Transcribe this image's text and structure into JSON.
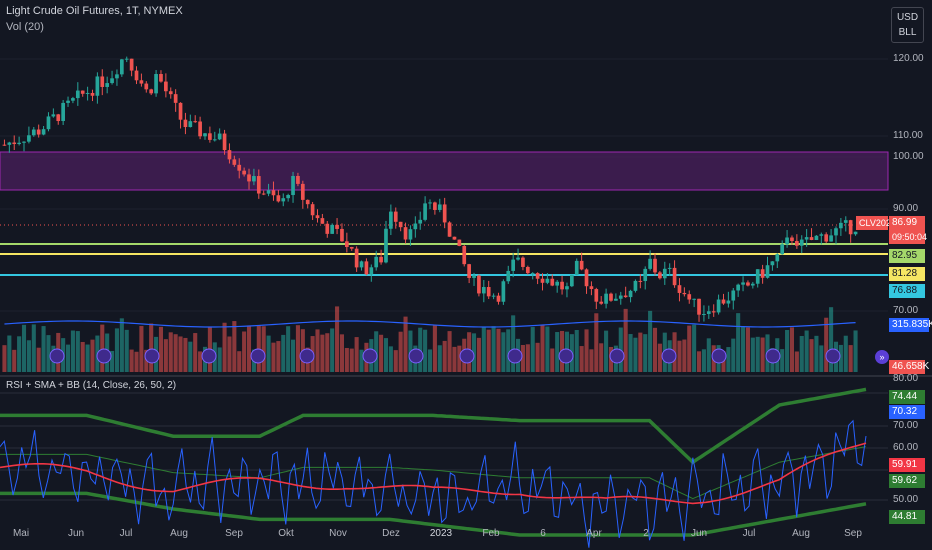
{
  "header": {
    "title": "Light Crude Oil Futures, 1T, NYMEX",
    "volume_indicator": "Vol (20)",
    "rsi_indicator": "RSI + SMA + BB (14, Close, 26, 50, 2)"
  },
  "currency_button": {
    "line1": "USD",
    "line2": "BLL"
  },
  "price_axis": {
    "ticks": [
      "120.00",
      "110.00",
      "100.00",
      "90.00",
      "70.00"
    ],
    "labels": {
      "symbol": "CLV2023",
      "last_price": "86.99",
      "countdown": "09:50:04",
      "level_green": "82.95",
      "level_yellow": "81.28",
      "level_cyan": "76.88",
      "volume_ma": "315.835K",
      "volume": "46.658K"
    }
  },
  "rsi_axis": {
    "ticks": [
      "80.00",
      "70.00",
      "60.00",
      "50.00"
    ],
    "labels": {
      "bb_upper": "74.44",
      "rsi": "70.32",
      "sma": "59.91",
      "bb_lower": "59.62",
      "last": "44.81"
    }
  },
  "time_axis": [
    "Mai",
    "Jun",
    "Jul",
    "Aug",
    "Sep",
    "Okt",
    "Nov",
    "Dez",
    "2023",
    "Feb",
    "6",
    "Apr",
    "2",
    "Jun",
    "Jul",
    "Aug",
    "Sep"
  ],
  "colors": {
    "background": "#131722",
    "up": "#26a69a",
    "down": "#ef5350",
    "zone": "#5b2a6e",
    "zone_border": "#9c27b0",
    "level_green": "#a5d86a",
    "level_yellow": "#f5e663",
    "level_cyan": "#34c7e0",
    "rsi_line": "#2962ff",
    "sma_line": "#f23645",
    "bb_band": "#2e7d32"
  },
  "chart_data": {
    "type": "candlestick",
    "instrument": "CLV2023",
    "price_range": [
      65,
      125
    ],
    "zone": [
      93.5,
      100.5
    ],
    "levels": [
      82.95,
      81.28,
      76.88
    ],
    "last_price": 86.99,
    "price_path": [
      [
        0,
        103
      ],
      [
        4,
        106
      ],
      [
        8,
        112
      ],
      [
        12,
        117
      ],
      [
        13.5,
        121
      ],
      [
        16,
        113
      ],
      [
        17,
        117
      ],
      [
        20,
        107
      ],
      [
        24,
        104
      ],
      [
        28,
        95
      ],
      [
        31,
        91
      ],
      [
        32,
        96
      ],
      [
        35,
        88
      ],
      [
        38,
        84
      ],
      [
        40,
        78
      ],
      [
        42,
        80
      ],
      [
        43,
        91
      ],
      [
        45,
        85
      ],
      [
        46,
        86
      ],
      [
        47,
        92
      ],
      [
        49,
        89
      ],
      [
        52,
        76
      ],
      [
        55,
        73
      ],
      [
        56,
        76
      ],
      [
        57,
        80
      ],
      [
        60,
        77
      ],
      [
        63,
        74
      ],
      [
        64,
        79
      ],
      [
        66,
        73
      ],
      [
        67,
        72
      ],
      [
        68,
        73
      ],
      [
        71,
        75
      ],
      [
        72,
        80
      ],
      [
        73,
        77
      ],
      [
        74,
        78
      ],
      [
        77,
        71
      ],
      [
        78,
        70
      ],
      [
        80,
        72
      ],
      [
        83,
        75
      ],
      [
        86,
        80
      ],
      [
        88,
        85
      ],
      [
        89,
        83
      ],
      [
        90,
        84
      ],
      [
        93,
        86
      ],
      [
        95,
        87
      ]
    ],
    "rsi_range": [
      44,
      81
    ],
    "bb_upper": [
      [
        0,
        73
      ],
      [
        10,
        73
      ],
      [
        20,
        69
      ],
      [
        30,
        69
      ],
      [
        35,
        73
      ],
      [
        50,
        73
      ],
      [
        60,
        72
      ],
      [
        75,
        72
      ],
      [
        80,
        64
      ],
      [
        90,
        75
      ],
      [
        100,
        78
      ]
    ],
    "bb_lower": [
      [
        0,
        58
      ],
      [
        10,
        58
      ],
      [
        20,
        55
      ],
      [
        30,
        53
      ],
      [
        45,
        53
      ],
      [
        60,
        50
      ],
      [
        75,
        50
      ],
      [
        80,
        50
      ],
      [
        90,
        53
      ],
      [
        100,
        56
      ]
    ],
    "sma_rsi": [
      [
        0,
        63
      ],
      [
        10,
        62
      ],
      [
        20,
        59
      ],
      [
        30,
        60
      ],
      [
        40,
        60
      ],
      [
        50,
        58
      ],
      [
        60,
        59
      ],
      [
        70,
        56
      ],
      [
        80,
        57
      ],
      [
        90,
        60
      ],
      [
        100,
        68
      ]
    ]
  }
}
